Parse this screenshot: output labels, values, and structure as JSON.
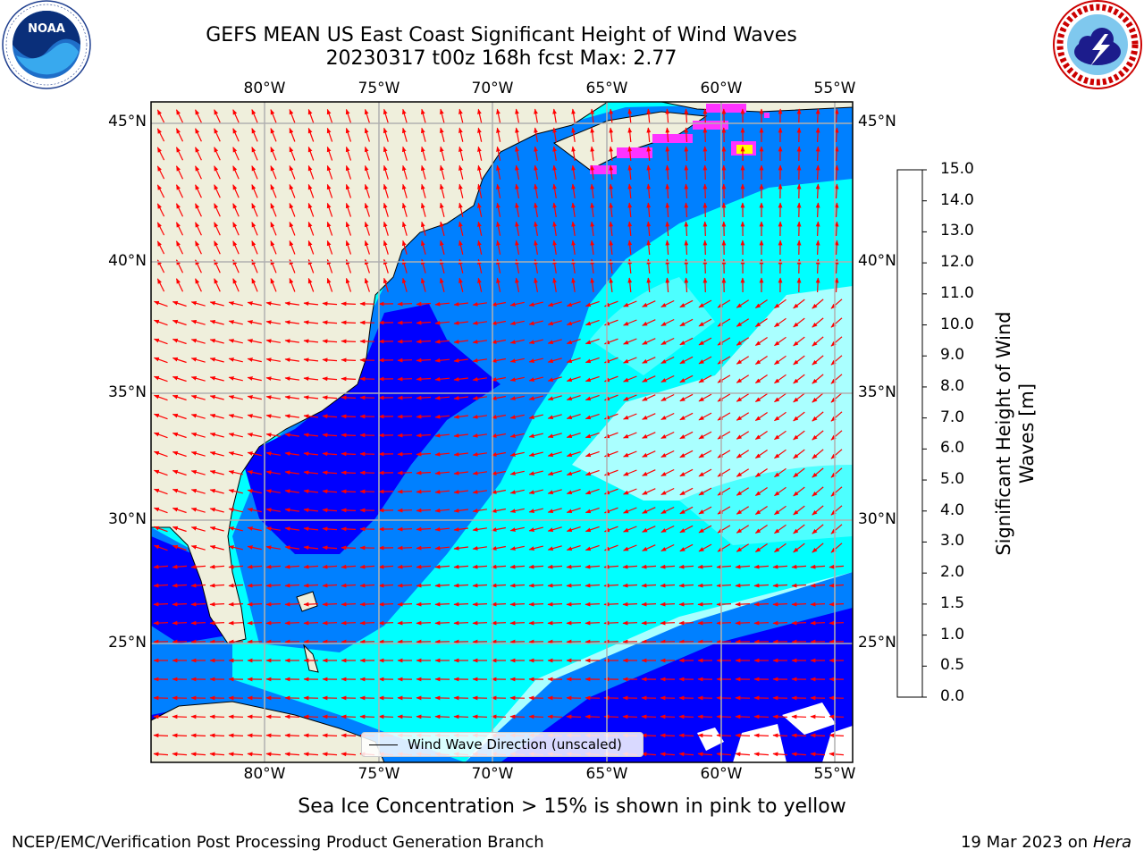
{
  "header": {
    "title_line1": "GEFS MEAN US East Coast Significant Height of Wind Waves",
    "title_line2": "20230317 t00z 168h fcst   Max: 2.77"
  },
  "logos": {
    "noaa": {
      "icon": "noaa-logo",
      "text": "NOAA",
      "ring_text": "NATIONAL OCEANIC AND ATMOSPHERIC ADMINISTRATION · U.S. DEPARTMENT OF COMMERCE"
    },
    "nws": {
      "icon": "nws-logo",
      "ring_text": "NATIONAL WEATHER SERVICE"
    }
  },
  "map": {
    "lon_labels": [
      "80°W",
      "75°W",
      "70°W",
      "65°W",
      "60°W",
      "55°W"
    ],
    "lat_labels": [
      "45°N",
      "40°N",
      "35°N",
      "30°N",
      "25°N"
    ],
    "land_color": "#efefdc",
    "ocean_colors": [
      "#0000ff",
      "#0080ff",
      "#00ffff",
      "#aaffff"
    ],
    "ice_colors": [
      "#ff33ff",
      "#ffff00"
    ],
    "arrow_color": "#ff0000"
  },
  "legend": {
    "label": "Wind Wave Direction (unscaled)"
  },
  "colorbar": {
    "ticks": [
      "0.0",
      "0.5",
      "1.0",
      "1.5",
      "2.0",
      "3.0",
      "4.0",
      "5.0",
      "6.0",
      "7.0",
      "8.0",
      "9.0",
      "10.0",
      "11.0",
      "12.0",
      "13.0",
      "14.0",
      "15.0"
    ],
    "colors": [
      "#0000ff",
      "#0080ff",
      "#00ffff",
      "#4dffff",
      "#99ffff",
      "#4dff80",
      "#00ff00",
      "#66ff00",
      "#b3ff00",
      "#ccff00",
      "#e6ff00",
      "#ffff00",
      "#ffd000",
      "#ffb000",
      "#ff8000",
      "#ff5000",
      "#ff2800"
    ],
    "label_line1": "Significant Height of Wind",
    "label_line2": "Waves [m]"
  },
  "footer": {
    "note": "Sea Ice Concentration > 15% is shown in pink to yellow",
    "left": "NCEP/EMC/Verification Post Processing Product Generation Branch",
    "right_date": "19 Mar 2023 on",
    "right_host": "Hera"
  }
}
